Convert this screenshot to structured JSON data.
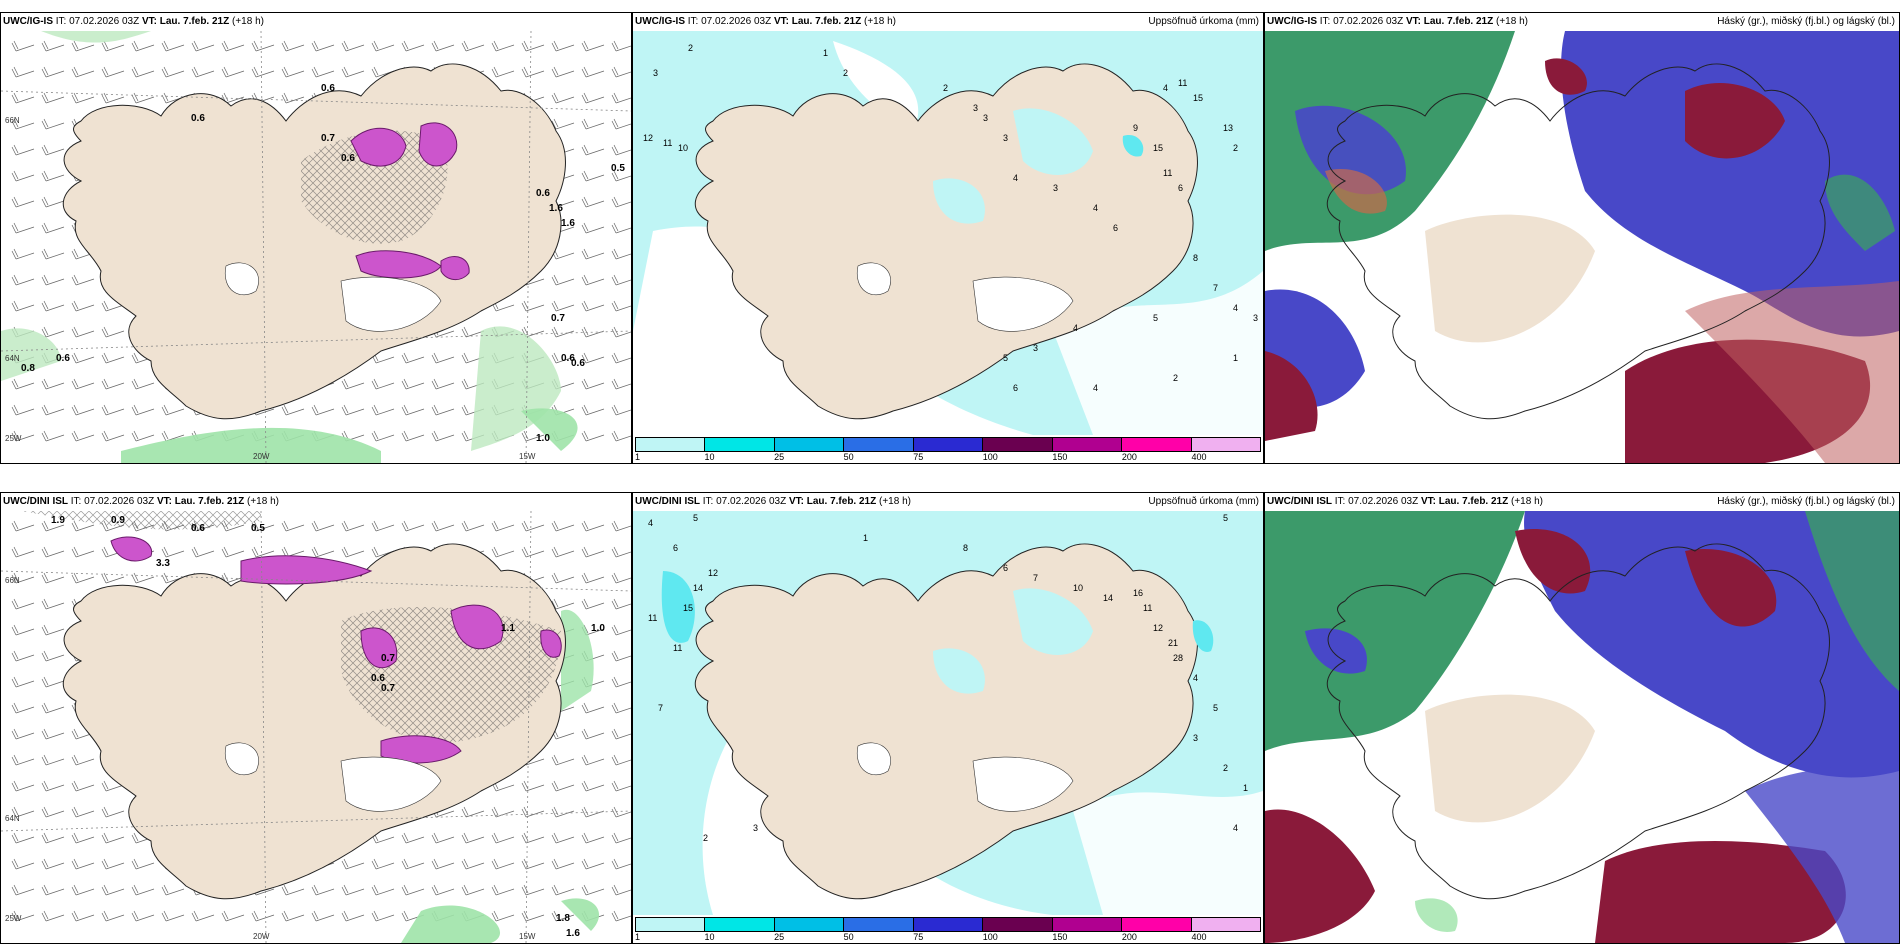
{
  "rows": [
    {
      "model": "UWC/IG-IS",
      "it_prefix": "IT:",
      "it": "07.02.2026 03Z",
      "vt_prefix": "VT:",
      "vt": "Lau. 7.feb. 21Z",
      "lead": "(+18 h)",
      "panel2_title": "Uppsöfnuð úrkoma (mm)",
      "panel3_title": "Háský (gr.), miðský (fj.bl.) og lágský (bl.)",
      "panel1_values": [
        "0.6",
        "0.7",
        "0.6",
        "0.6",
        "0.5",
        "1.6",
        "0.7",
        "0.6",
        "0.6",
        "0.8",
        "0.6",
        "1.0",
        "1.6",
        "0.6"
      ],
      "panel2_values": [
        "2",
        "3",
        "12",
        "11",
        "10",
        "1",
        "2",
        "2",
        "3",
        "3",
        "3",
        "4",
        "3",
        "4",
        "6",
        "9",
        "15",
        "11",
        "6",
        "4",
        "11",
        "15",
        "13",
        "2",
        "8",
        "7",
        "4",
        "3",
        "5",
        "4",
        "3",
        "5",
        "6",
        "4",
        "2",
        "1"
      ]
    },
    {
      "model": "UWC/DINI ISL",
      "it_prefix": "IT:",
      "it": "07.02.2026 03Z",
      "vt_prefix": "VT:",
      "vt": "Lau. 7.feb. 21Z",
      "lead": "(+18 h)",
      "panel2_title": "Uppsöfnuð úrkoma (mm)",
      "panel3_title": "Háský (gr.), miðský (fj.bl.) og lágský (bl.)",
      "panel1_values": [
        "1.9",
        "0.9",
        "0.6",
        "0.5",
        "3.3",
        "1.1",
        "0.7",
        "0.6",
        "1.0",
        "0.7",
        "1.8",
        "1.6"
      ],
      "panel2_values": [
        "4",
        "5",
        "6",
        "12",
        "14",
        "15",
        "11",
        "11",
        "7",
        "2",
        "3",
        "1",
        "8",
        "6",
        "7",
        "10",
        "14",
        "16",
        "11",
        "12",
        "21",
        "28",
        "4",
        "5",
        "3",
        "2",
        "1",
        "4",
        "5"
      ]
    }
  ],
  "coords": {
    "lat66": "66N",
    "lat64": "64N",
    "lon25": "25W",
    "lon20": "20W",
    "lon15": "15W"
  },
  "legend": {
    "ticks": [
      "1",
      "10",
      "25",
      "50",
      "75",
      "100",
      "150",
      "200",
      "400"
    ],
    "colors": [
      "#bff5f5",
      "#00e6e6",
      "#00bfe6",
      "#2a6ee6",
      "#2a2ad2",
      "#6a0050",
      "#b00090",
      "#ff00a8",
      "#f0b0f0"
    ]
  },
  "colors": {
    "land": "#efe2d2",
    "precip_light": "#bff5f5",
    "precip_mid": "#5fe8f0",
    "cloud_high": "#3c9a6a",
    "cloud_mid": "#4848c8",
    "cloud_low": "#8a1a3a",
    "snow": "#cc55cc",
    "rain_green": "#9ee3a9"
  }
}
